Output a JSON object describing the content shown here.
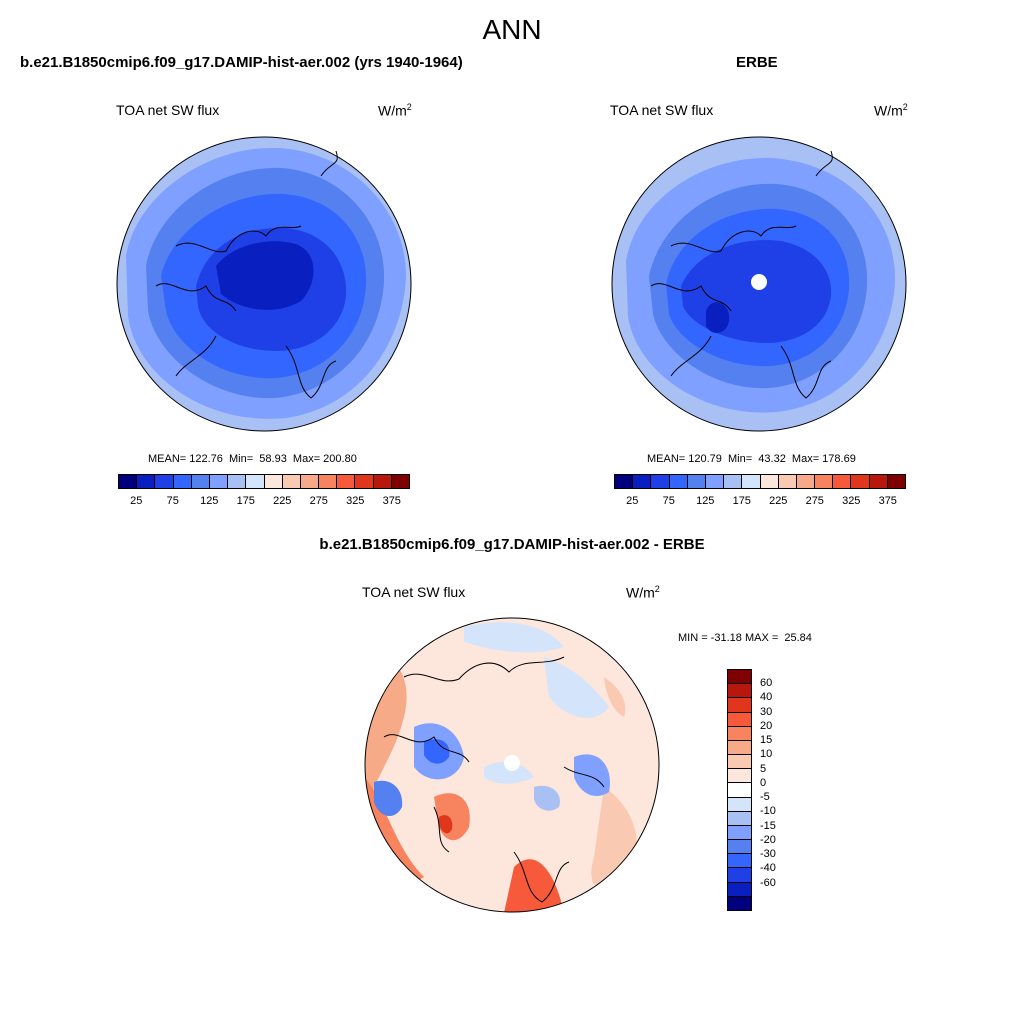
{
  "title": "ANN",
  "palette_abs": [
    "#00007f",
    "#0a1fbf",
    "#1f40e6",
    "#3366ff",
    "#5580f0",
    "#7fa0ff",
    "#a9c0f5",
    "#d4e4fa",
    "#fde6dc",
    "#f9c9b2",
    "#f6aa88",
    "#f7835f",
    "#f65a3a",
    "#e0361c",
    "#b8170c",
    "#7f0000"
  ],
  "palette_diff": [
    "#7f0000",
    "#b8170c",
    "#e0361c",
    "#f65a3a",
    "#f7835f",
    "#f6aa88",
    "#f9c9b2",
    "#fde6dc",
    "#ffffff",
    "#d4e4fa",
    "#a9c0f5",
    "#7fa0ff",
    "#5580f0",
    "#3366ff",
    "#1f40e6",
    "#0a1fbf",
    "#00007f"
  ],
  "panels": [
    {
      "title": "b.e21.B1850cmip6.f09_g17.DAMIP-hist-aer.002 (yrs 1940-1964)",
      "field": "TOA net SW flux",
      "units": "W/m",
      "units_sup": "2",
      "stats": "MEAN= 122.76  Min=  58.93  Max= 200.80",
      "ticks": [
        "25",
        "75",
        "125",
        "175",
        "225",
        "275",
        "325",
        "375"
      ]
    },
    {
      "title": "ERBE",
      "field": "TOA net SW flux",
      "units": "W/m",
      "units_sup": "2",
      "stats": "MEAN= 120.79  Min=  43.32  Max= 178.69",
      "ticks": [
        "25",
        "75",
        "125",
        "175",
        "225",
        "275",
        "325",
        "375"
      ]
    }
  ],
  "diff": {
    "title": "b.e21.B1850cmip6.f09_g17.DAMIP-hist-aer.002 - ERBE",
    "field": "TOA net SW flux",
    "units": "W/m",
    "units_sup": "2",
    "stats": "MIN = -31.18 MAX =  25.84",
    "ticks": [
      "60",
      "40",
      "30",
      "20",
      "15",
      "10",
      "5",
      "0",
      "-5",
      "-10",
      "-15",
      "-20",
      "-30",
      "-40",
      "-60"
    ]
  }
}
